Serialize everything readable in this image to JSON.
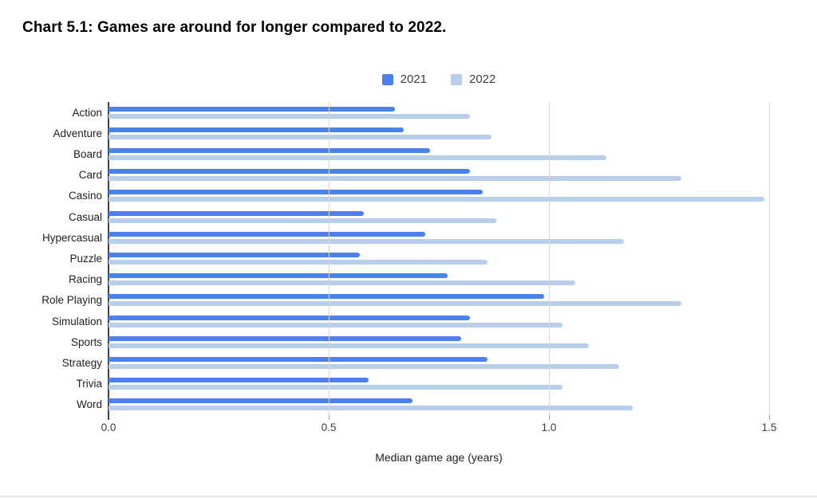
{
  "title": "Chart 5.1: Games are around for longer compared to 2022.",
  "colors": {
    "series_2021": "#4a81ea",
    "series_2022": "#b7cfea",
    "gridline": "#d9d9d9",
    "axis": "#424242"
  },
  "chart_data": {
    "type": "bar",
    "orientation": "horizontal",
    "title": "Chart 5.1: Games are around for longer compared to 2022.",
    "xlabel": "Median game age (years)",
    "ylabel": "",
    "xlim": [
      0,
      1.5
    ],
    "x_ticks": [
      0.0,
      0.5,
      1.0,
      1.5
    ],
    "x_tick_labels": [
      "0.0",
      "0.5",
      "1.0",
      "1.5"
    ],
    "grid": true,
    "legend_position": "top",
    "categories": [
      "Action",
      "Adventure",
      "Board",
      "Card",
      "Casino",
      "Casual",
      "Hypercasual",
      "Puzzle",
      "Racing",
      "Role Playing",
      "Simulation",
      "Sports",
      "Strategy",
      "Trivia",
      "Word"
    ],
    "series": [
      {
        "name": "2021",
        "color": "#4a81ea",
        "values": [
          0.65,
          0.67,
          0.73,
          0.82,
          0.85,
          0.58,
          0.72,
          0.57,
          0.77,
          0.99,
          0.82,
          0.8,
          0.86,
          0.59,
          0.69
        ]
      },
      {
        "name": "2022",
        "color": "#b7cfea",
        "values": [
          0.82,
          0.87,
          1.13,
          1.3,
          1.49,
          0.88,
          1.17,
          0.86,
          1.06,
          1.3,
          1.03,
          1.09,
          1.16,
          1.03,
          1.19
        ]
      }
    ]
  }
}
